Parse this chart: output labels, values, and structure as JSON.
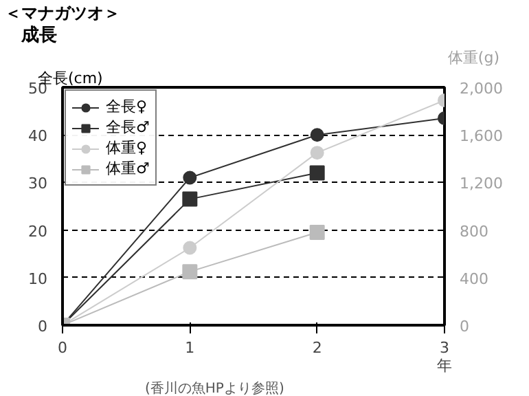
{
  "chart_data": {
    "type": "line",
    "title": "＜マナガツオ＞",
    "subtitle": "成長",
    "ylabel": "全長(cm)",
    "y2label": "体重(g)",
    "xlabel": "年",
    "annotations": [
      "(香川の魚HPより参照)"
    ],
    "x": [
      0,
      1,
      2,
      3
    ],
    "xlim": [
      0,
      3
    ],
    "xticks": [
      0,
      1,
      2,
      3
    ],
    "ylim": [
      0,
      50
    ],
    "yticks": [
      0,
      10,
      20,
      30,
      40,
      50
    ],
    "y2lim": [
      0,
      2000
    ],
    "y2ticks": [
      0,
      400,
      800,
      {
        "value": 1200,
        "label": "1,200"
      },
      {
        "value": 1600,
        "label": "1,600"
      },
      {
        "value": 2000,
        "label": "2,000"
      }
    ],
    "grid": "y",
    "legend": "top left",
    "line_style": "solid",
    "series": [
      {
        "name": "全長♀",
        "color": "#303030",
        "marker": "circle",
        "values": [
          0,
          31,
          40,
          43.5
        ]
      },
      {
        "name": "全長♂",
        "color": "#303030",
        "marker": "square",
        "values": [
          0,
          26.5,
          32,
          null
        ]
      },
      {
        "name": "体重♀",
        "color": "#cccccc",
        "marker": "circle",
        "axis": "y2",
        "values": [
          0,
          650,
          1450,
          1890
        ]
      },
      {
        "name": "体重♂",
        "color": "#bbbbbb",
        "marker": "square",
        "axis": "y2",
        "values": [
          0,
          450,
          780,
          null
        ]
      }
    ]
  }
}
